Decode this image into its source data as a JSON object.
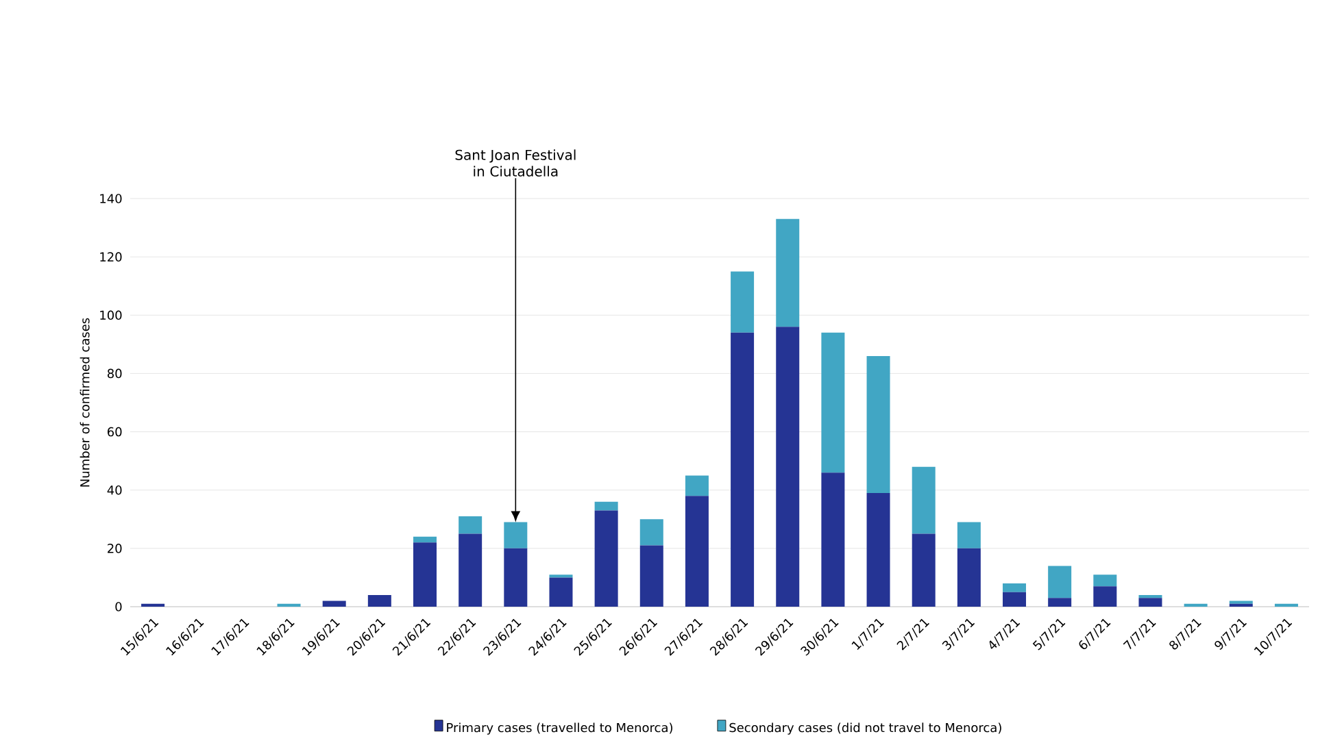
{
  "chart_data": {
    "type": "bar",
    "stacked": true,
    "ylabel": "Number of confirmed cases",
    "categories": [
      "15/6/21",
      "16/6/21",
      "17/6/21",
      "18/6/21",
      "19/6/21",
      "20/6/21",
      "21/6/21",
      "22/6/21",
      "23/6/21",
      "24/6/21",
      "25/6/21",
      "26/6/21",
      "27/6/21",
      "28/6/21",
      "29/6/21",
      "30/6/21",
      "1/7/21",
      "2/7/21",
      "3/7/21",
      "4/7/21",
      "5/7/21",
      "6/7/21",
      "7/7/21",
      "8/7/21",
      "9/7/21",
      "10/7/21"
    ],
    "series": [
      {
        "name": "Primary cases (travelled to Menorca)",
        "color": "#253494",
        "values": [
          1,
          0,
          0,
          0,
          2,
          4,
          22,
          25,
          20,
          10,
          33,
          21,
          38,
          94,
          96,
          46,
          39,
          25,
          20,
          5,
          3,
          7,
          3,
          0,
          1,
          0
        ]
      },
      {
        "name": "Secondary cases (did not travel to Menorca)",
        "color": "#41a6c4",
        "values": [
          0,
          0,
          0,
          1,
          0,
          0,
          2,
          6,
          9,
          1,
          3,
          9,
          7,
          21,
          37,
          48,
          47,
          23,
          9,
          3,
          11,
          4,
          1,
          1,
          1,
          1
        ]
      }
    ],
    "ylim": [
      0,
      140
    ],
    "yticks": [
      0,
      20,
      40,
      60,
      80,
      100,
      120,
      140
    ],
    "grid": "y",
    "legend": "bottom",
    "annotations": [
      {
        "text": "Sant Joan Festival\nin Ciutadella",
        "x": "23/6/21",
        "y": 29
      }
    ]
  }
}
